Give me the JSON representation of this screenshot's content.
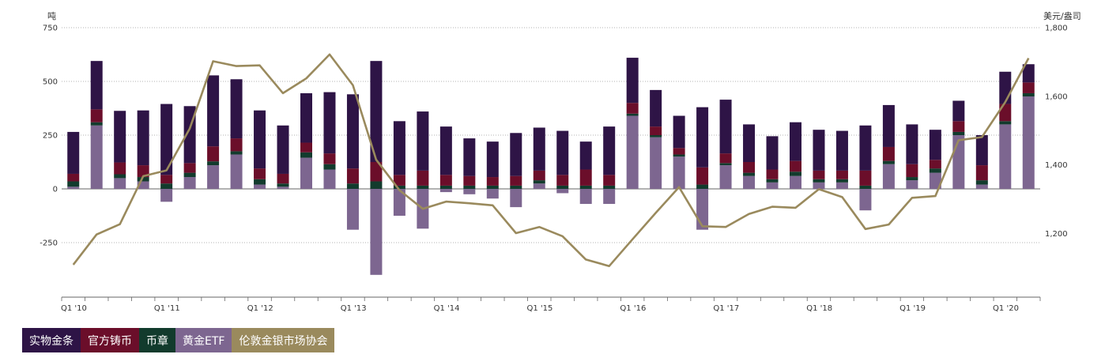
{
  "colors": {
    "physical_bar": "#2e1446",
    "official_coin": "#6b0e2a",
    "medal": "#123b2d",
    "gold_etf": "#7d6690",
    "lbma": "#9a8a5d",
    "grid": "#9a9a9a",
    "axis": "#666666"
  },
  "chart_data": {
    "type": "bar",
    "stacked": true,
    "left_axis": {
      "unit_label": "吨",
      "range": [
        -430,
        750
      ],
      "ticks": [
        750,
        500,
        250,
        0,
        -250
      ],
      "tick_labels": [
        "750",
        "500",
        "250",
        "0",
        "-250"
      ]
    },
    "right_axis": {
      "unit_label": "美元/盎司",
      "range": [
        1060,
        1800
      ],
      "ticks": [
        1800,
        1600,
        1400,
        1200
      ],
      "tick_labels": [
        "1,800",
        "1,600",
        "1,400",
        "1,200"
      ]
    },
    "x_tick_labels": [
      {
        "index": 0,
        "label": "Q1 '10"
      },
      {
        "index": 4,
        "label": "Q1 '11"
      },
      {
        "index": 8,
        "label": "Q1 '12"
      },
      {
        "index": 12,
        "label": "Q1 '13"
      },
      {
        "index": 16,
        "label": "Q1 '14"
      },
      {
        "index": 20,
        "label": "Q1 '15"
      },
      {
        "index": 24,
        "label": "Q1 '16"
      },
      {
        "index": 28,
        "label": "Q1 '17"
      },
      {
        "index": 32,
        "label": "Q1 '18"
      },
      {
        "index": 36,
        "label": "Q1 '19"
      },
      {
        "index": 40,
        "label": "Q1 '20"
      }
    ],
    "categories": [
      "Q1 '10",
      "Q2 '10",
      "Q3 '10",
      "Q4 '10",
      "Q1 '11",
      "Q2 '11",
      "Q3 '11",
      "Q4 '11",
      "Q1 '12",
      "Q2 '12",
      "Q3 '12",
      "Q4 '12",
      "Q1 '13",
      "Q2 '13",
      "Q3 '13",
      "Q4 '13",
      "Q1 '14",
      "Q2 '14",
      "Q3 '14",
      "Q4 '14",
      "Q1 '15",
      "Q2 '15",
      "Q3 '15",
      "Q4 '15",
      "Q1 '16",
      "Q2 '16",
      "Q3 '16",
      "Q4 '16",
      "Q1 '17",
      "Q2 '17",
      "Q3 '17",
      "Q4 '17",
      "Q1 '18",
      "Q2 '18",
      "Q3 '18",
      "Q4 '18",
      "Q1 '19",
      "Q2 '19",
      "Q3 '19",
      "Q4 '19",
      "Q1 '20",
      "Q2 '20"
    ],
    "series": [
      {
        "name": "黄金ETF",
        "key": "gold_etf",
        "axis": "left",
        "values": [
          10,
          295,
          50,
          35,
          -60,
          55,
          110,
          160,
          20,
          10,
          145,
          90,
          -190,
          -400,
          -125,
          -185,
          -15,
          -25,
          -45,
          -85,
          25,
          -20,
          -70,
          -70,
          340,
          240,
          150,
          -190,
          110,
          60,
          30,
          60,
          30,
          30,
          -100,
          115,
          40,
          75,
          250,
          20,
          300,
          430
        ]
      },
      {
        "name": "币章",
        "key": "medal",
        "axis": "left",
        "values": [
          25,
          15,
          18,
          20,
          25,
          20,
          18,
          15,
          25,
          15,
          25,
          25,
          25,
          35,
          15,
          15,
          15,
          15,
          15,
          15,
          15,
          15,
          15,
          15,
          10,
          10,
          10,
          20,
          10,
          15,
          15,
          20,
          15,
          15,
          15,
          15,
          15,
          20,
          15,
          20,
          15,
          15
        ]
      },
      {
        "name": "官方铸币",
        "key": "official_coin",
        "axis": "left",
        "values": [
          35,
          60,
          55,
          55,
          40,
          45,
          70,
          60,
          50,
          45,
          45,
          50,
          70,
          90,
          50,
          70,
          50,
          45,
          40,
          45,
          45,
          50,
          75,
          50,
          50,
          40,
          30,
          80,
          45,
          50,
          45,
          50,
          40,
          40,
          70,
          65,
          60,
          40,
          50,
          70,
          80,
          50
        ]
      },
      {
        "name": "实物金条",
        "key": "physical_bar",
        "axis": "left",
        "values": [
          195,
          225,
          240,
          255,
          330,
          265,
          330,
          275,
          270,
          225,
          230,
          285,
          345,
          470,
          250,
          275,
          225,
          175,
          165,
          200,
          200,
          205,
          130,
          225,
          210,
          170,
          150,
          280,
          250,
          175,
          155,
          180,
          190,
          185,
          210,
          195,
          185,
          140,
          95,
          140,
          150,
          85
        ]
      },
      {
        "name": "伦敦金银市场协会",
        "key": "lbma",
        "axis": "right",
        "type": "line",
        "values": [
          1109,
          1197,
          1227,
          1367,
          1384,
          1506,
          1702,
          1688,
          1690,
          1609,
          1652,
          1722,
          1632,
          1415,
          1326,
          1272,
          1293,
          1288,
          1282,
          1201,
          1219,
          1192,
          1124,
          1105,
          1183,
          1260,
          1335,
          1221,
          1219,
          1257,
          1278,
          1275,
          1329,
          1306,
          1213,
          1226,
          1304,
          1309,
          1472,
          1481,
          1583,
          1711
        ]
      }
    ]
  },
  "legend": [
    {
      "key": "physical_bar",
      "label": "实物金条"
    },
    {
      "key": "official_coin",
      "label": "官方铸币"
    },
    {
      "key": "medal",
      "label": "币章"
    },
    {
      "key": "gold_etf",
      "label": "黄金ETF"
    },
    {
      "key": "lbma",
      "label": "伦敦金银市场协会"
    }
  ]
}
